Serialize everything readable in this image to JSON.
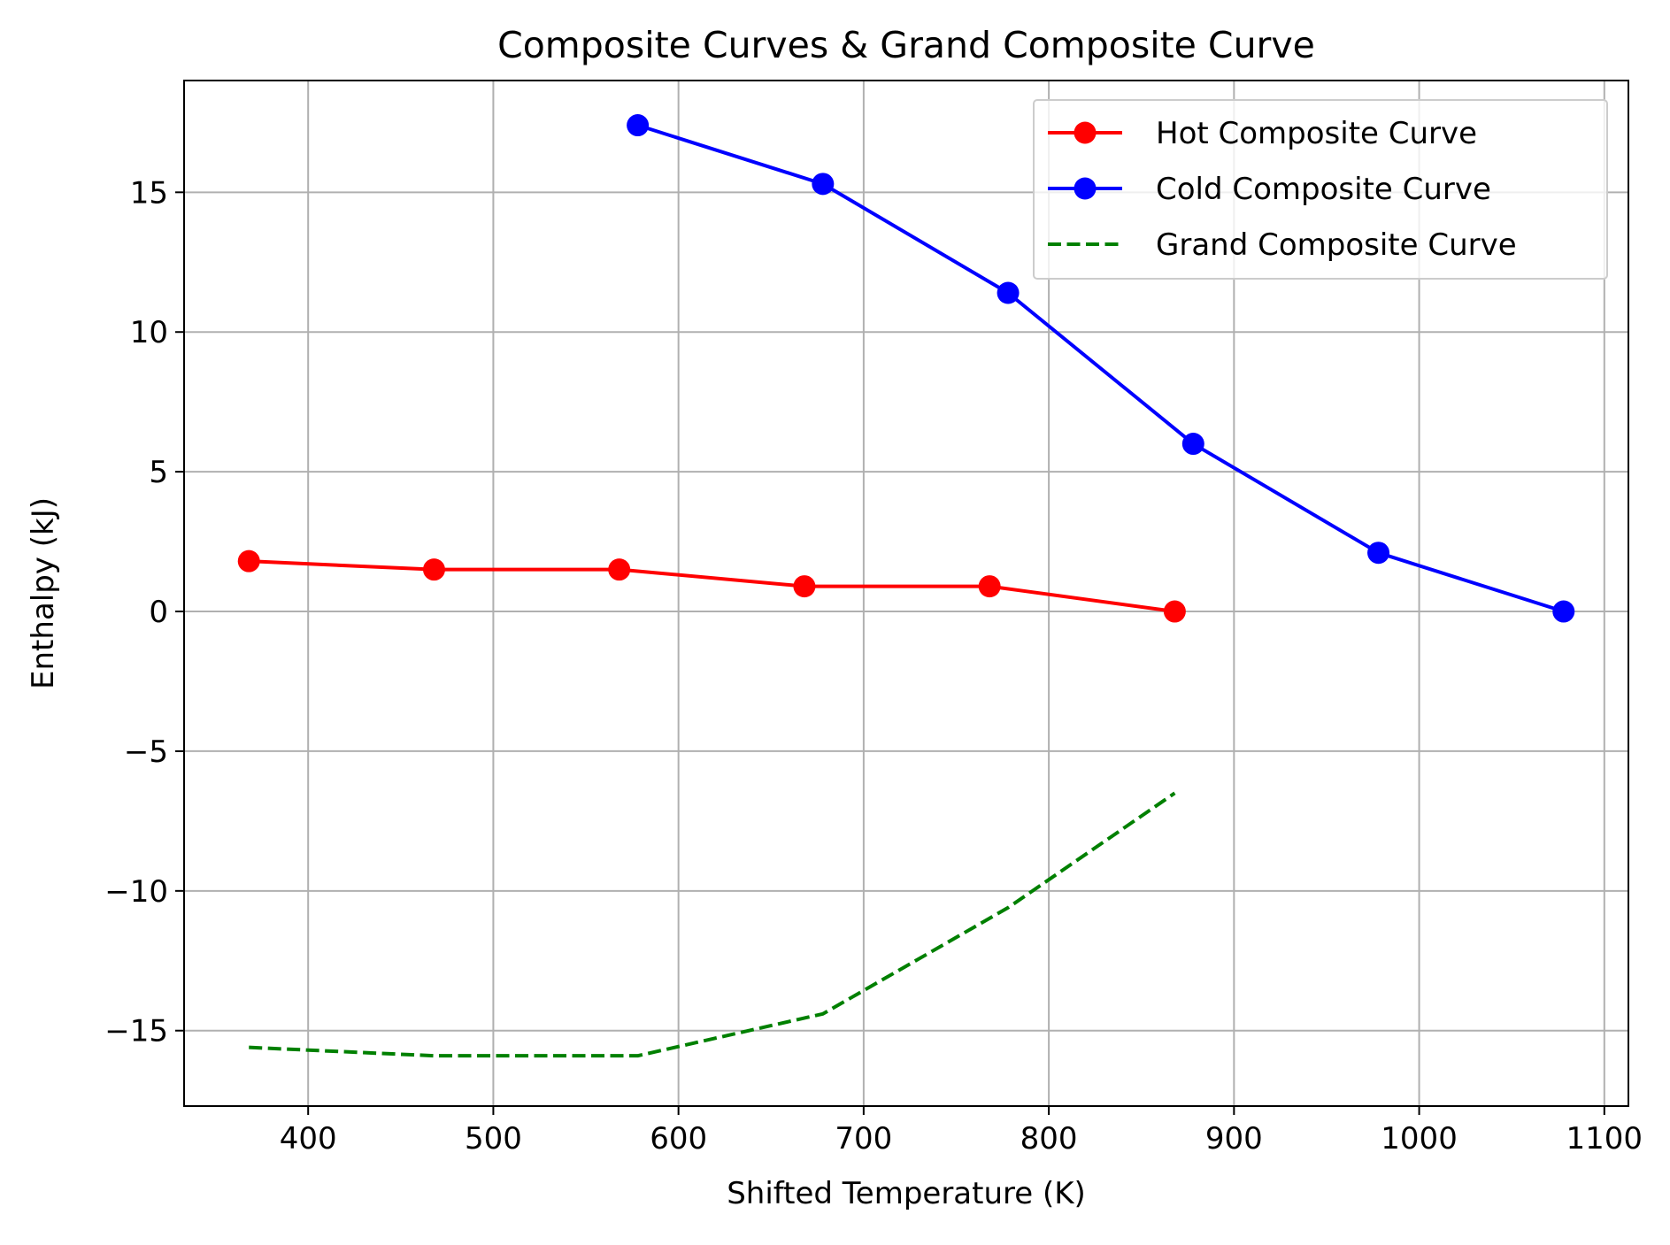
{
  "chart_data": {
    "type": "line",
    "title": "Composite Curves & Grand Composite Curve",
    "xlabel": "Shifted Temperature (K)",
    "ylabel": "Enthalpy (kJ)",
    "xlim": [
      333,
      1113
    ],
    "ylim": [
      -17.7,
      19.0
    ],
    "xticks": [
      400,
      500,
      600,
      700,
      800,
      900,
      1000,
      1100
    ],
    "yticks": [
      15,
      10,
      5,
      0,
      -5,
      -10,
      -15
    ],
    "grid": true,
    "legend_position": "top-right",
    "series": [
      {
        "name": "Hot Composite Curve",
        "color": "#ff0000",
        "style": "solid",
        "marker": "circle",
        "x": [
          368,
          468,
          568,
          668,
          768,
          868
        ],
        "y": [
          1.8,
          1.5,
          1.5,
          0.9,
          0.9,
          0.0
        ]
      },
      {
        "name": "Cold Composite Curve",
        "color": "#0000ff",
        "style": "solid",
        "marker": "circle",
        "x": [
          578,
          678,
          778,
          878,
          978,
          1078
        ],
        "y": [
          17.4,
          15.3,
          11.4,
          6.0,
          2.1,
          0.0
        ]
      },
      {
        "name": "Grand Composite Curve",
        "color": "#008000",
        "style": "dashed",
        "marker": "none",
        "x": [
          368,
          468,
          578,
          678,
          778,
          868
        ],
        "y": [
          -15.6,
          -15.9,
          -15.9,
          -14.4,
          -10.6,
          -6.5
        ]
      }
    ]
  }
}
